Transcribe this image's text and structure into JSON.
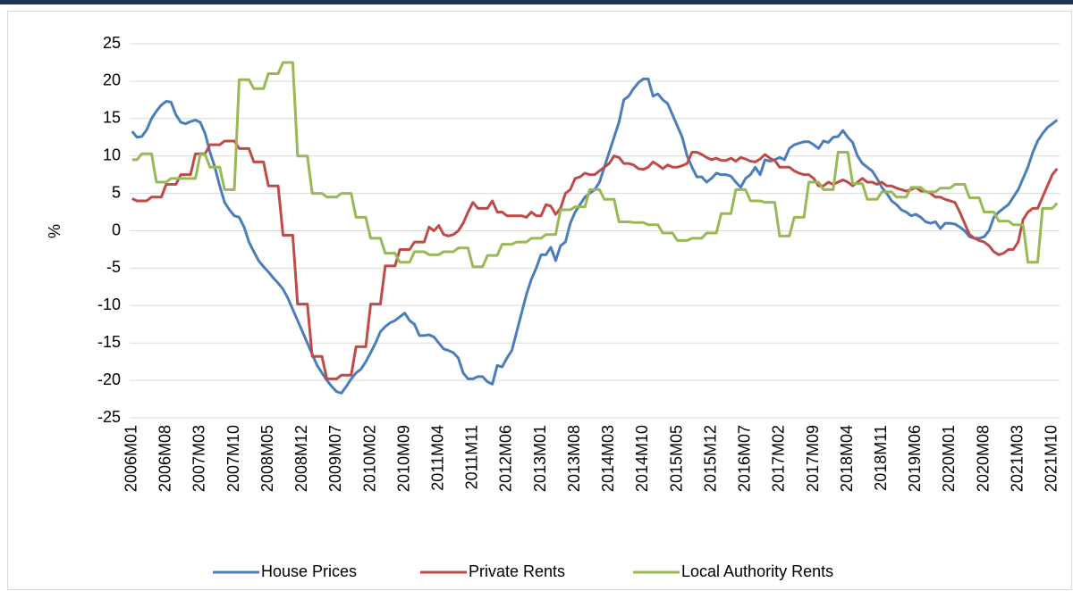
{
  "chart_data": {
    "type": "line",
    "y_label": "%",
    "ylim": [
      -25,
      25
    ],
    "yticks": [
      -25,
      -20,
      -15,
      -10,
      -5,
      0,
      5,
      10,
      15,
      20,
      25
    ],
    "grid": true,
    "legend": "bottom",
    "categories": [
      "2006M01",
      null,
      null,
      null,
      null,
      null,
      null,
      "2006M08",
      null,
      null,
      null,
      null,
      null,
      null,
      "2007M03",
      null,
      null,
      null,
      null,
      null,
      null,
      "2007M10",
      null,
      null,
      null,
      null,
      null,
      null,
      "2008M05",
      null,
      null,
      null,
      null,
      null,
      null,
      "2008M12",
      null,
      null,
      null,
      null,
      null,
      null,
      "2009M07",
      null,
      null,
      null,
      null,
      null,
      null,
      "2010M02",
      null,
      null,
      null,
      null,
      null,
      null,
      "2010M09",
      null,
      null,
      null,
      null,
      null,
      null,
      "2011M04",
      null,
      null,
      null,
      null,
      null,
      null,
      "2011M11",
      null,
      null,
      null,
      null,
      null,
      null,
      "2012M06",
      null,
      null,
      null,
      null,
      null,
      null,
      "2013M01",
      null,
      null,
      null,
      null,
      null,
      null,
      "2013M08",
      null,
      null,
      null,
      null,
      null,
      null,
      "2014M03",
      null,
      null,
      null,
      null,
      null,
      null,
      "2014M10",
      null,
      null,
      null,
      null,
      null,
      null,
      "2015M05",
      null,
      null,
      null,
      null,
      null,
      null,
      "2015M12",
      null,
      null,
      null,
      null,
      null,
      null,
      "2016M07",
      null,
      null,
      null,
      null,
      null,
      null,
      "2017M02",
      null,
      null,
      null,
      null,
      null,
      null,
      "2017M09",
      null,
      null,
      null,
      null,
      null,
      null,
      "2018M04",
      null,
      null,
      null,
      null,
      null,
      null,
      "2018M11",
      null,
      null,
      null,
      null,
      null,
      null,
      "2019M06",
      null,
      null,
      null,
      null,
      null,
      null,
      "2020M01",
      null,
      null,
      null,
      null,
      null,
      null,
      "2020M08",
      null,
      null,
      null,
      null,
      null,
      null,
      "2021M03",
      null,
      null,
      null,
      null,
      null,
      null,
      "2021M10",
      null
    ],
    "series": [
      {
        "name": "House Prices",
        "color": "#4a7ebb",
        "values": [
          13.3,
          12.5,
          12.6,
          13.5,
          15,
          16,
          16.8,
          17.3,
          17.2,
          15.5,
          14.5,
          14.3,
          14.6,
          14.8,
          14.5,
          13,
          10.5,
          8.5,
          6,
          3.8,
          2.8,
          2,
          1.8,
          0.5,
          -1.5,
          -2.8,
          -4,
          -4.8,
          -5.5,
          -6.3,
          -7,
          -7.8,
          -9,
          -10.5,
          -12,
          -13.5,
          -15,
          -16.5,
          -18,
          -19,
          -20,
          -20.8,
          -21.5,
          -21.7,
          -20.8,
          -19.8,
          -19,
          -18.5,
          -17.5,
          -16.3,
          -15,
          -13.5,
          -12.8,
          -12.3,
          -12,
          -11.5,
          -11,
          -12,
          -12.5,
          -14,
          -14,
          -13.9,
          -14.2,
          -15,
          -15.8,
          -16,
          -16.3,
          -17,
          -19,
          -19.8,
          -19.8,
          -19.5,
          -19.5,
          -20.2,
          -20.5,
          -18,
          -18.2,
          -17,
          -16,
          -13.5,
          -11,
          -8.5,
          -6.5,
          -5,
          -3.2,
          -3.2,
          -2.2,
          -4,
          -2,
          -1.5,
          1,
          2.5,
          3.5,
          4.5,
          5,
          5.5,
          6.5,
          8.5,
          10.5,
          12.5,
          14.5,
          17.5,
          18,
          19,
          19.8,
          20.3,
          20.3,
          18,
          18.3,
          17.5,
          17,
          15.5,
          14,
          12.5,
          10,
          8.5,
          7.2,
          7.2,
          6.5,
          7,
          7.7,
          7.5,
          7.5,
          7.3,
          6.5,
          5.8,
          7,
          7.5,
          8.5,
          7.5,
          9.5,
          9.3,
          9.5,
          9.8,
          9.5,
          11,
          11.5,
          11.7,
          11.9,
          11.9,
          11.5,
          11,
          12,
          11.8,
          12.5,
          12.6,
          13.4,
          12.5,
          11.8,
          10,
          9,
          8.5,
          8,
          7,
          5.8,
          5,
          4,
          3.5,
          2.8,
          2.5,
          2,
          2.2,
          1.8,
          1.2,
          1,
          1.2,
          0.3,
          1,
          1,
          0.9,
          0.5,
          0,
          -0.8,
          -1,
          -1,
          -0.8,
          0,
          1.8,
          2.5,
          3,
          3.5,
          4.5,
          5.5,
          7,
          8.5,
          10.5,
          12,
          13,
          13.8,
          14.3,
          14.8
        ]
      },
      {
        "name": "Private Rents",
        "color": "#be4b48",
        "values": [
          4.3,
          4,
          4,
          4,
          4.5,
          4.5,
          4.5,
          6.2,
          6.2,
          6.2,
          7.5,
          7.5,
          7.5,
          10.3,
          10.3,
          10.3,
          11.5,
          11.5,
          11.5,
          12,
          12,
          12,
          11,
          11,
          11,
          9.2,
          9.2,
          9.2,
          6,
          6,
          6,
          -0.6,
          -0.6,
          -0.6,
          -9.8,
          -9.8,
          -9.8,
          -16.8,
          -16.8,
          -16.8,
          -19.8,
          -19.8,
          -19.8,
          -19.3,
          -19.3,
          -19.3,
          -15.5,
          -15.5,
          -15.5,
          -9.8,
          -9.8,
          -9.8,
          -4.7,
          -4.7,
          -4.7,
          -2.5,
          -2.5,
          -2.5,
          -1.5,
          -1.5,
          -1.5,
          0.5,
          0,
          0.7,
          -0.5,
          -0.7,
          -0.5,
          0,
          1,
          2.5,
          3.8,
          3,
          3,
          3,
          4,
          2.5,
          2.5,
          2,
          2,
          2,
          2,
          1.8,
          2.5,
          2,
          2,
          3.5,
          3.3,
          2.2,
          3,
          5,
          5.5,
          7,
          7.2,
          7.7,
          7.5,
          7.5,
          8,
          8.5,
          9,
          10,
          9.8,
          9,
          9,
          8.8,
          8.3,
          8.2,
          8.5,
          9.2,
          8.8,
          8.3,
          8.8,
          8.5,
          8.5,
          8.7,
          9,
          10.5,
          10.5,
          10.2,
          9.8,
          9.5,
          9.7,
          9.4,
          9.4,
          9.7,
          9.3,
          9.8,
          9.6,
          9.3,
          9.2,
          9.6,
          10.2,
          9.7,
          9.4,
          8.5,
          8.5,
          8.5,
          8,
          7.7,
          7.5,
          7.5,
          7,
          6,
          6,
          6.5,
          6.2,
          6.5,
          6.8,
          6.5,
          6,
          6.5,
          7,
          6.5,
          6.5,
          6.2,
          6.5,
          6,
          6,
          5.7,
          5.5,
          5.3,
          5.5,
          5.8,
          5.3,
          5.3,
          5,
          4.5,
          4.5,
          4.2,
          4,
          3.8,
          2.5,
          1,
          -0.5,
          -1,
          -1.3,
          -1.5,
          -2,
          -2.8,
          -3.2,
          -3,
          -2.5,
          -2.5,
          -1.5,
          1.5,
          2.5,
          3,
          3,
          4.5,
          6,
          7.5,
          8.3
        ]
      },
      {
        "name": "Local Authority Rents",
        "color": "#98b954",
        "values": [
          9.5,
          9.5,
          10.3,
          10.3,
          10.3,
          6.5,
          6.5,
          6.5,
          7,
          7,
          7,
          7,
          7,
          7,
          10.2,
          10.2,
          8.5,
          8.5,
          8.5,
          5.5,
          5.5,
          5.5,
          20.2,
          20.2,
          20.2,
          19,
          19,
          19,
          21,
          21,
          21,
          22.5,
          22.5,
          22.5,
          10,
          10,
          10,
          5,
          5,
          5,
          4.5,
          4.5,
          4.5,
          5,
          5,
          5,
          1.8,
          1.8,
          1.8,
          -1,
          -1,
          -1,
          -3,
          -3,
          -3,
          -4.2,
          -4.2,
          -4.2,
          -2.8,
          -2.8,
          -2.8,
          -3.2,
          -3.2,
          -3.2,
          -2.8,
          -2.8,
          -2.8,
          -2.3,
          -2.3,
          -2.3,
          -4.8,
          -4.8,
          -4.8,
          -3.3,
          -3.3,
          -3.3,
          -1.8,
          -1.8,
          -1.8,
          -1.5,
          -1.5,
          -1.5,
          -1,
          -1,
          -1,
          -0.5,
          -0.5,
          -0.5,
          2.8,
          2.8,
          2.8,
          3.2,
          3.2,
          3.2,
          5.5,
          5.5,
          5.5,
          4.2,
          4.2,
          4.2,
          1.2,
          1.2,
          1.2,
          1.1,
          1.1,
          1.1,
          0.8,
          0.8,
          0.8,
          -0.3,
          -0.3,
          -0.3,
          -1.3,
          -1.3,
          -1.3,
          -1,
          -1,
          -1,
          -0.3,
          -0.3,
          -0.3,
          2.3,
          2.3,
          2.3,
          5.5,
          5.5,
          5.5,
          4,
          4,
          4,
          3.8,
          3.8,
          3.8,
          -0.7,
          -0.7,
          -0.7,
          1.8,
          1.8,
          1.8,
          6.5,
          6.5,
          6.5,
          5.5,
          5.5,
          5.5,
          10.5,
          10.5,
          10.5,
          6.3,
          6.3,
          6.3,
          4.2,
          4.2,
          4.2,
          5.2,
          5.2,
          5.2,
          4.5,
          4.5,
          4.5,
          5.8,
          5.8,
          5.8,
          5.2,
          5.2,
          5.2,
          5.7,
          5.7,
          5.7,
          6.2,
          6.2,
          6.2,
          4.4,
          4.4,
          4.4,
          2.5,
          2.5,
          2.5,
          1.3,
          1.3,
          1.3,
          0.8,
          0.8,
          0.8,
          -4.2,
          -4.2,
          -4.2,
          3,
          3,
          3,
          3.7
        ]
      }
    ]
  }
}
